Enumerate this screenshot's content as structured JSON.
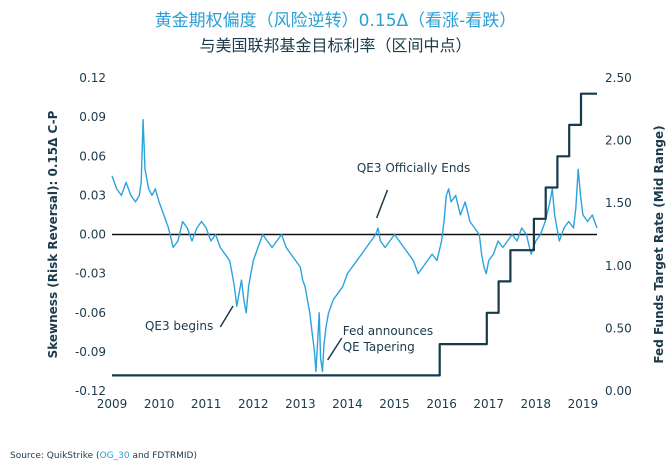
{
  "chart_data": {
    "type": "line",
    "title": "黄金期权偏度（风险逆转）0.15Δ（看涨-看跌）",
    "subtitle": "与美国联邦基金目标利率（区间中点）",
    "ylabel_left": "Skewness (Risk Reversal): 0.15Δ C-P",
    "ylabel_right": "Fed Funds Target Rate (Mid Range)",
    "x_ticks": [
      "2009",
      "2010",
      "2011",
      "2012",
      "2013",
      "2014",
      "2015",
      "2016",
      "2017",
      "2018",
      "2019"
    ],
    "xlim": [
      2009.0,
      2019.3
    ],
    "y_left_ticks": [
      "0.12",
      "0.09",
      "0.06",
      "0.03",
      "0.00",
      "-0.03",
      "-0.06",
      "-0.09",
      "-0.12"
    ],
    "y_left_lim": [
      -0.12,
      0.12
    ],
    "y_right_ticks": [
      "2.50",
      "2.00",
      "1.50",
      "1.00",
      "0.50",
      "0.00"
    ],
    "y_right_lim": [
      0.0,
      2.5
    ],
    "zero_line": true,
    "annotations": {
      "qe3_begins": "QE3 begins",
      "qe3_ends": "QE3 Officially Ends",
      "fed_tapering_line1": "Fed announces",
      "fed_tapering_line2": "QE Tapering"
    },
    "series": [
      {
        "name": "",
        "axis": "left",
        "color": "#2ba3dd",
        "points": [
          [
            2009.0,
            0.045
          ],
          [
            2009.1,
            0.035
          ],
          [
            2009.2,
            0.03
          ],
          [
            2009.3,
            0.04
          ],
          [
            2009.4,
            0.03
          ],
          [
            2009.5,
            0.025
          ],
          [
            2009.58,
            0.03
          ],
          [
            2009.62,
            0.04
          ],
          [
            2009.66,
            0.088
          ],
          [
            2009.7,
            0.05
          ],
          [
            2009.78,
            0.035
          ],
          [
            2009.85,
            0.03
          ],
          [
            2009.92,
            0.035
          ],
          [
            2010.0,
            0.025
          ],
          [
            2010.1,
            0.015
          ],
          [
            2010.2,
            0.005
          ],
          [
            2010.3,
            -0.01
          ],
          [
            2010.4,
            -0.005
          ],
          [
            2010.5,
            0.01
          ],
          [
            2010.6,
            0.005
          ],
          [
            2010.7,
            -0.005
          ],
          [
            2010.8,
            0.005
          ],
          [
            2010.9,
            0.01
          ],
          [
            2011.0,
            0.005
          ],
          [
            2011.1,
            -0.005
          ],
          [
            2011.2,
            0.0
          ],
          [
            2011.3,
            -0.01
          ],
          [
            2011.4,
            -0.015
          ],
          [
            2011.5,
            -0.02
          ],
          [
            2011.55,
            -0.03
          ],
          [
            2011.6,
            -0.04
          ],
          [
            2011.65,
            -0.055
          ],
          [
            2011.7,
            -0.045
          ],
          [
            2011.75,
            -0.035
          ],
          [
            2011.8,
            -0.05
          ],
          [
            2011.85,
            -0.06
          ],
          [
            2011.9,
            -0.04
          ],
          [
            2011.95,
            -0.03
          ],
          [
            2012.0,
            -0.02
          ],
          [
            2012.1,
            -0.01
          ],
          [
            2012.2,
            0.0
          ],
          [
            2012.3,
            -0.005
          ],
          [
            2012.4,
            -0.01
          ],
          [
            2012.5,
            -0.005
          ],
          [
            2012.6,
            0.0
          ],
          [
            2012.7,
            -0.01
          ],
          [
            2012.8,
            -0.015
          ],
          [
            2012.9,
            -0.02
          ],
          [
            2013.0,
            -0.025
          ],
          [
            2013.05,
            -0.035
          ],
          [
            2013.1,
            -0.04
          ],
          [
            2013.15,
            -0.05
          ],
          [
            2013.2,
            -0.06
          ],
          [
            2013.25,
            -0.075
          ],
          [
            2013.3,
            -0.09
          ],
          [
            2013.33,
            -0.105
          ],
          [
            2013.37,
            -0.08
          ],
          [
            2013.4,
            -0.06
          ],
          [
            2013.43,
            -0.095
          ],
          [
            2013.47,
            -0.105
          ],
          [
            2013.5,
            -0.085
          ],
          [
            2013.55,
            -0.07
          ],
          [
            2013.6,
            -0.06
          ],
          [
            2013.7,
            -0.05
          ],
          [
            2013.8,
            -0.045
          ],
          [
            2013.9,
            -0.04
          ],
          [
            2014.0,
            -0.03
          ],
          [
            2014.1,
            -0.025
          ],
          [
            2014.2,
            -0.02
          ],
          [
            2014.3,
            -0.015
          ],
          [
            2014.4,
            -0.01
          ],
          [
            2014.5,
            -0.005
          ],
          [
            2014.6,
            0.0
          ],
          [
            2014.65,
            0.005
          ],
          [
            2014.7,
            -0.005
          ],
          [
            2014.8,
            -0.01
          ],
          [
            2014.9,
            -0.005
          ],
          [
            2015.0,
            0.0
          ],
          [
            2015.1,
            -0.005
          ],
          [
            2015.2,
            -0.01
          ],
          [
            2015.3,
            -0.015
          ],
          [
            2015.4,
            -0.02
          ],
          [
            2015.5,
            -0.03
          ],
          [
            2015.6,
            -0.025
          ],
          [
            2015.7,
            -0.02
          ],
          [
            2015.8,
            -0.015
          ],
          [
            2015.9,
            -0.02
          ],
          [
            2016.0,
            -0.005
          ],
          [
            2016.05,
            0.01
          ],
          [
            2016.1,
            0.03
          ],
          [
            2016.15,
            0.035
          ],
          [
            2016.2,
            0.025
          ],
          [
            2016.3,
            0.03
          ],
          [
            2016.4,
            0.015
          ],
          [
            2016.5,
            0.025
          ],
          [
            2016.6,
            0.01
          ],
          [
            2016.7,
            0.005
          ],
          [
            2016.8,
            0.0
          ],
          [
            2016.85,
            -0.015
          ],
          [
            2016.9,
            -0.025
          ],
          [
            2016.95,
            -0.03
          ],
          [
            2017.0,
            -0.02
          ],
          [
            2017.1,
            -0.015
          ],
          [
            2017.2,
            -0.005
          ],
          [
            2017.3,
            -0.01
          ],
          [
            2017.4,
            -0.005
          ],
          [
            2017.5,
            0.0
          ],
          [
            2017.6,
            -0.005
          ],
          [
            2017.7,
            0.005
          ],
          [
            2017.8,
            0.0
          ],
          [
            2017.9,
            -0.015
          ],
          [
            2018.0,
            -0.005
          ],
          [
            2018.1,
            0.0
          ],
          [
            2018.2,
            0.01
          ],
          [
            2018.3,
            0.025
          ],
          [
            2018.35,
            0.035
          ],
          [
            2018.4,
            0.015
          ],
          [
            2018.5,
            -0.005
          ],
          [
            2018.6,
            0.005
          ],
          [
            2018.7,
            0.01
          ],
          [
            2018.8,
            0.005
          ],
          [
            2018.85,
            0.02
          ],
          [
            2018.9,
            0.05
          ],
          [
            2018.95,
            0.03
          ],
          [
            2019.0,
            0.015
          ],
          [
            2019.1,
            0.01
          ],
          [
            2019.2,
            0.015
          ],
          [
            2019.3,
            0.005
          ]
        ]
      },
      {
        "name": "",
        "axis": "right",
        "color": "#163a4c",
        "points": [
          [
            2009.0,
            0.125
          ],
          [
            2015.96,
            0.125
          ],
          [
            2015.96,
            0.375
          ],
          [
            2016.96,
            0.375
          ],
          [
            2016.96,
            0.625
          ],
          [
            2017.21,
            0.625
          ],
          [
            2017.21,
            0.875
          ],
          [
            2017.46,
            0.875
          ],
          [
            2017.46,
            1.125
          ],
          [
            2017.96,
            1.125
          ],
          [
            2017.96,
            1.375
          ],
          [
            2018.21,
            1.375
          ],
          [
            2018.21,
            1.625
          ],
          [
            2018.46,
            1.625
          ],
          [
            2018.46,
            1.875
          ],
          [
            2018.71,
            1.875
          ],
          [
            2018.71,
            2.125
          ],
          [
            2018.96,
            2.125
          ],
          [
            2018.96,
            2.375
          ],
          [
            2019.3,
            2.375
          ]
        ]
      }
    ]
  },
  "source": {
    "prefix": "Source: QuikStrike (",
    "highlight": "OG_30",
    "suffix": " and FDTRMID)"
  }
}
